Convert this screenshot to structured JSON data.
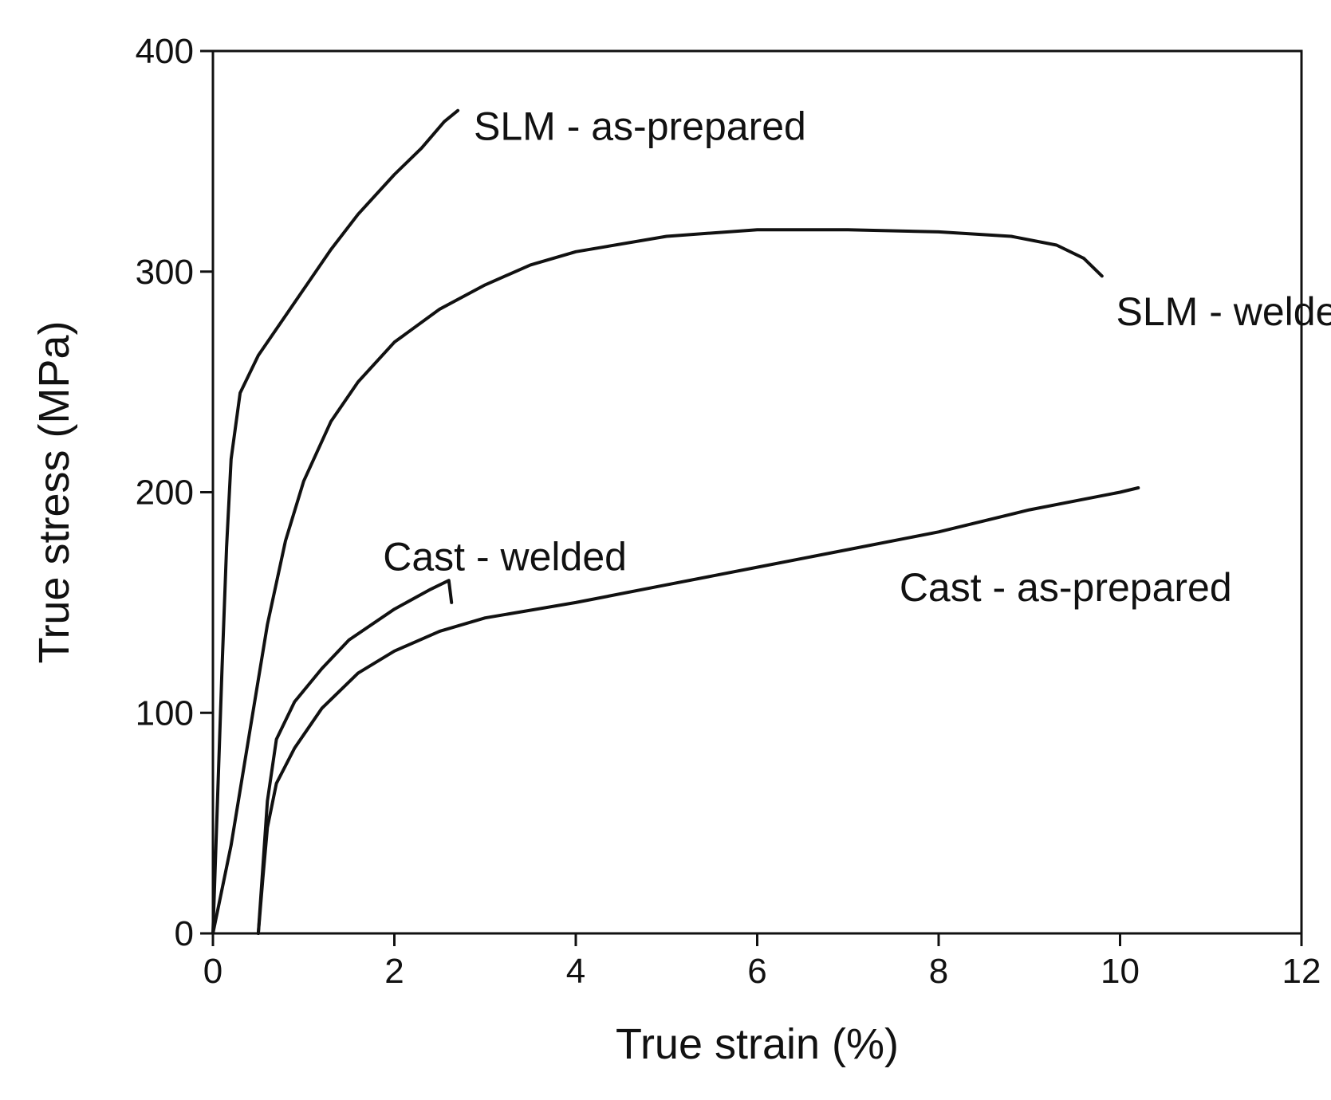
{
  "chart_data": {
    "type": "line",
    "xlabel": "True strain (%)",
    "ylabel": "True stress (MPa)",
    "xlim": [
      0,
      12
    ],
    "ylim": [
      0,
      400
    ],
    "x_ticks": [
      0,
      2,
      4,
      6,
      8,
      10,
      12
    ],
    "y_ticks": [
      0,
      100,
      200,
      300,
      400
    ],
    "grid": false,
    "legend": "none",
    "line_color": "#111111",
    "series": [
      {
        "name": "SLM - as-prepared",
        "points": [
          [
            0,
            0
          ],
          [
            0.05,
            60
          ],
          [
            0.1,
            120
          ],
          [
            0.15,
            175
          ],
          [
            0.2,
            215
          ],
          [
            0.3,
            245
          ],
          [
            0.5,
            262
          ],
          [
            0.8,
            280
          ],
          [
            1.0,
            292
          ],
          [
            1.3,
            310
          ],
          [
            1.6,
            326
          ],
          [
            2.0,
            344
          ],
          [
            2.3,
            356
          ],
          [
            2.55,
            368
          ],
          [
            2.7,
            373
          ]
        ]
      },
      {
        "name": "SLM - welded",
        "points": [
          [
            0,
            0
          ],
          [
            0.2,
            40
          ],
          [
            0.4,
            90
          ],
          [
            0.6,
            140
          ],
          [
            0.8,
            178
          ],
          [
            1.0,
            205
          ],
          [
            1.3,
            232
          ],
          [
            1.6,
            250
          ],
          [
            2.0,
            268
          ],
          [
            2.5,
            283
          ],
          [
            3.0,
            294
          ],
          [
            3.5,
            303
          ],
          [
            4.0,
            309
          ],
          [
            5.0,
            316
          ],
          [
            6.0,
            319
          ],
          [
            7.0,
            319
          ],
          [
            8.0,
            318
          ],
          [
            8.8,
            316
          ],
          [
            9.3,
            312
          ],
          [
            9.6,
            306
          ],
          [
            9.8,
            298
          ]
        ]
      },
      {
        "name": "Cast - welded",
        "points": [
          [
            0.5,
            0
          ],
          [
            0.55,
            30
          ],
          [
            0.6,
            60
          ],
          [
            0.7,
            88
          ],
          [
            0.9,
            105
          ],
          [
            1.2,
            120
          ],
          [
            1.5,
            133
          ],
          [
            2.0,
            147
          ],
          [
            2.4,
            156
          ],
          [
            2.6,
            160
          ],
          [
            2.63,
            150
          ]
        ]
      },
      {
        "name": "Cast - as-prepared",
        "points": [
          [
            0.5,
            0
          ],
          [
            0.55,
            25
          ],
          [
            0.6,
            48
          ],
          [
            0.7,
            68
          ],
          [
            0.9,
            84
          ],
          [
            1.2,
            102
          ],
          [
            1.6,
            118
          ],
          [
            2.0,
            128
          ],
          [
            2.5,
            137
          ],
          [
            3.0,
            143
          ],
          [
            4.0,
            150
          ],
          [
            5.0,
            158
          ],
          [
            6.0,
            166
          ],
          [
            7.0,
            174
          ],
          [
            8.0,
            182
          ],
          [
            9.0,
            192
          ],
          [
            10.0,
            200
          ],
          [
            10.2,
            202
          ]
        ]
      }
    ],
    "annotations": [
      {
        "text": "SLM - as-prepared",
        "series": "SLM - as-prepared"
      },
      {
        "text": "SLM - welded",
        "series": "SLM - welded"
      },
      {
        "text": "Cast - welded",
        "series": "Cast - welded"
      },
      {
        "text": "Cast - as-prepared",
        "series": "Cast - as-prepared"
      }
    ]
  }
}
